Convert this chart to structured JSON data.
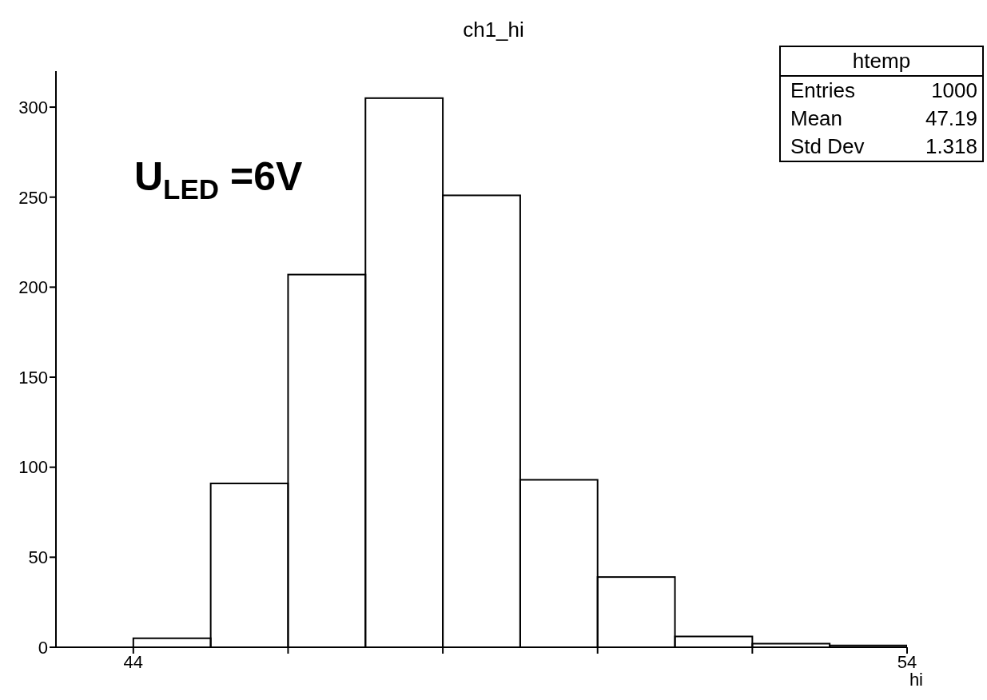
{
  "chart_data": {
    "type": "histogram",
    "title": "ch1_hi",
    "xlabel": "hi",
    "bins": [
      44,
      45,
      46,
      47,
      48,
      49,
      50,
      51,
      52,
      53,
      54
    ],
    "values": [
      5,
      91,
      207,
      305,
      251,
      93,
      39,
      6,
      2,
      1
    ],
    "color": "#000000",
    "xlim": [
      43,
      54
    ],
    "xticks": [
      44,
      {
        "value": 46,
        "label": null
      },
      {
        "value": 48,
        "label": null
      },
      {
        "value": 50,
        "label": null
      },
      {
        "value": 52,
        "label": null
      },
      54
    ],
    "grid": false,
    "legend": false,
    "ylim": [
      0,
      320
    ],
    "yticks": [
      0,
      50,
      100,
      150,
      200,
      250,
      300
    ],
    "annotations": [
      "U$_{LED}$=6V",
      "htemp",
      "Entries",
      "1000",
      "Mean",
      "47.19",
      "Std Dev",
      "1.318"
    ]
  }
}
